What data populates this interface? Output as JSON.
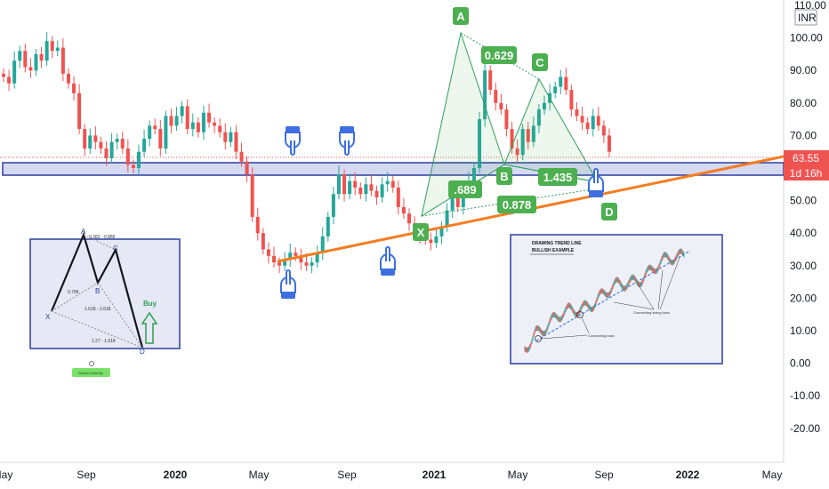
{
  "chart_data": {
    "type": "candlestick",
    "currency": "INR",
    "y_max_label": "110.00",
    "ylim": [
      -28,
      114
    ],
    "y_ticks": [
      -20,
      -10,
      0,
      10,
      20,
      30,
      40,
      50,
      60,
      70,
      80,
      90,
      100,
      110
    ],
    "y_tick_labels": [
      "-20.00",
      "-10.00",
      "0.00",
      "10.00",
      "20.00",
      "30.00",
      "40.00",
      "50.00",
      "60.00",
      "70.00",
      "80.00",
      "90.00",
      "100.00",
      "110.00"
    ],
    "x_tick_labels": [
      "May",
      "Sep",
      "2020",
      "May",
      "Sep",
      "2021",
      "May",
      "Sep",
      "2022",
      "May"
    ],
    "last_price": "63.55",
    "countdown": "1d 16h",
    "colors": {
      "up": "#26a69a",
      "down": "#ef5350",
      "label": "#4caf50",
      "trend": "#f57c20",
      "zone": "#2a3ea0",
      "zone_fill": "#d6d9f2",
      "hand": "#3d6fe0"
    },
    "support_zone": [
      57,
      61
    ],
    "trendline": {
      "from": [
        "May 2020",
        31
      ],
      "to": [
        "Mar 2022",
        64
      ]
    },
    "closes": [
      88,
      86,
      93,
      96,
      91,
      90,
      95,
      93,
      99,
      96,
      97,
      89,
      86,
      83,
      72,
      66,
      70,
      68,
      66,
      63,
      68,
      69,
      66,
      61,
      60,
      65,
      69,
      73,
      72,
      66,
      76,
      73,
      76,
      79,
      72,
      74,
      71,
      77,
      74,
      73,
      71,
      68,
      71,
      65,
      62,
      58,
      45,
      40,
      35,
      33,
      31,
      30,
      32,
      34,
      33,
      31,
      30,
      31,
      34,
      39,
      45,
      52,
      58,
      52,
      56,
      54,
      52,
      55,
      53,
      51,
      55,
      56,
      54,
      48,
      46,
      43,
      40,
      39,
      38,
      37,
      39,
      42,
      47,
      52,
      48,
      53,
      56,
      60,
      75,
      90,
      84,
      80,
      78,
      72,
      66,
      64,
      72,
      68,
      73,
      78,
      80,
      83,
      85,
      88,
      84,
      78,
      76,
      74,
      72,
      76,
      73,
      70,
      65
    ],
    "pattern_points": [
      {
        "name": "X",
        "value": 46,
        "label": "X"
      },
      {
        "name": "A",
        "value": 102,
        "label": "A"
      },
      {
        "name": "B",
        "value": 63,
        "label": "B"
      },
      {
        "name": "C",
        "value": 87,
        "label": "C"
      },
      {
        "name": "D",
        "value": 55,
        "label": "D"
      }
    ],
    "ratios": [
      "0.629",
      "1.435",
      ".689",
      "0.878"
    ],
    "inset_left": {
      "points": [
        "X",
        "A",
        "B",
        "C",
        "D"
      ],
      "labels": [
        "0.382 - 0.886",
        "0.786",
        "1.618 - 2.618",
        "1.27 - 1.618"
      ],
      "buy": "Buy",
      "badge": "Bullish Butterfly"
    },
    "inset_right": {
      "title_line1": "DRAWING TREND LINE",
      "title_line2": "BULLISH EXAMPLE",
      "callout1": "Connecting lows",
      "callout2": "Connecting swing lows"
    }
  }
}
